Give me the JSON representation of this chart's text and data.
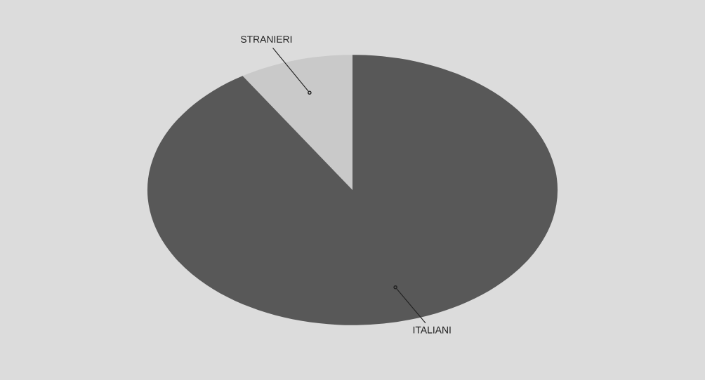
{
  "chart_data": {
    "type": "pie",
    "categories": [
      "STRANIERI",
      "ITALIANI"
    ],
    "values": [
      9,
      91
    ],
    "colors": [
      "#c9c9c9",
      "#585858"
    ]
  }
}
